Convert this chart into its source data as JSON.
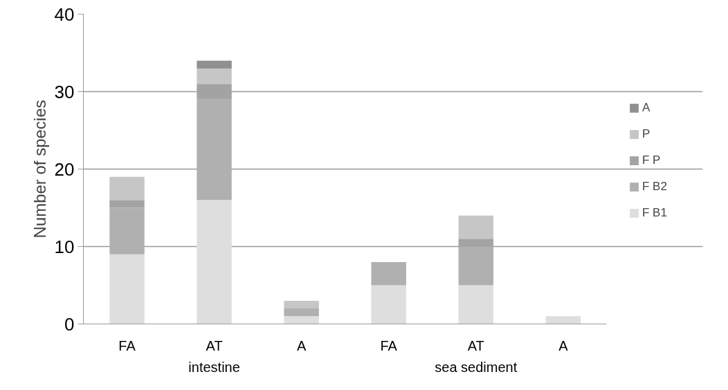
{
  "chart_data": {
    "type": "bar",
    "stacked": true,
    "ylabel": "Number of species",
    "categories": [
      "FA",
      "AT",
      "A",
      "FA",
      "AT",
      "A"
    ],
    "annotations": [
      "intestine",
      "sea sediment"
    ],
    "ylim": [
      0,
      40
    ],
    "yticks": [
      0,
      10,
      20,
      30,
      40
    ],
    "grid": "y",
    "legend": "right",
    "series": [
      {
        "name": "F B1",
        "color": "#dedede",
        "values": [
          9,
          16,
          1,
          5,
          5,
          1
        ]
      },
      {
        "name": "F B2",
        "color": "#b0b0b0",
        "values": [
          6,
          13,
          1,
          3,
          5,
          0
        ]
      },
      {
        "name": "F P",
        "color": "#a3a3a3",
        "values": [
          1,
          2,
          0,
          0,
          1,
          0
        ]
      },
      {
        "name": "P",
        "color": "#c6c6c6",
        "values": [
          3,
          2,
          1,
          0,
          3,
          0
        ]
      },
      {
        "name": "A",
        "color": "#909090",
        "values": [
          0,
          1,
          0,
          0,
          0,
          0
        ]
      }
    ]
  }
}
